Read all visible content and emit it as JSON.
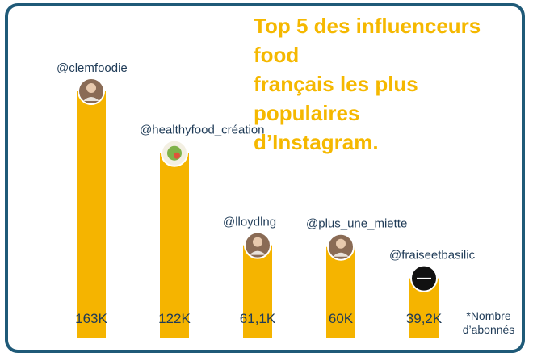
{
  "title": "Top 5 des influenceurs food\nfrançais les plus populaires\nd’Instagram.",
  "footnote": "*Nombre\nd’abonnés",
  "colors": {
    "bar": "#f5b400",
    "frame": "#1f5a78",
    "title": "#f5b800",
    "text": "#1f3b57"
  },
  "chart_data": {
    "type": "bar",
    "title": "Top 5 des influenceurs food français les plus populaires d’Instagram.",
    "categories": [
      "@clemfoodie",
      "@healthyfood_création",
      "@lloydlng",
      "@plus_une_miette",
      "@fraiseetbasilic"
    ],
    "values": [
      163,
      122,
      61.1,
      60,
      39.2
    ],
    "value_labels": [
      "163K",
      "122K",
      "61,1K",
      "60K",
      "39,2K"
    ],
    "avatars": [
      "photo-avatar",
      "logo-avatar",
      "photo-avatar",
      "photo-avatar",
      "logo-avatar"
    ],
    "unit_note": "*Nombre d’abonnés",
    "grid": false,
    "legend": "none"
  }
}
